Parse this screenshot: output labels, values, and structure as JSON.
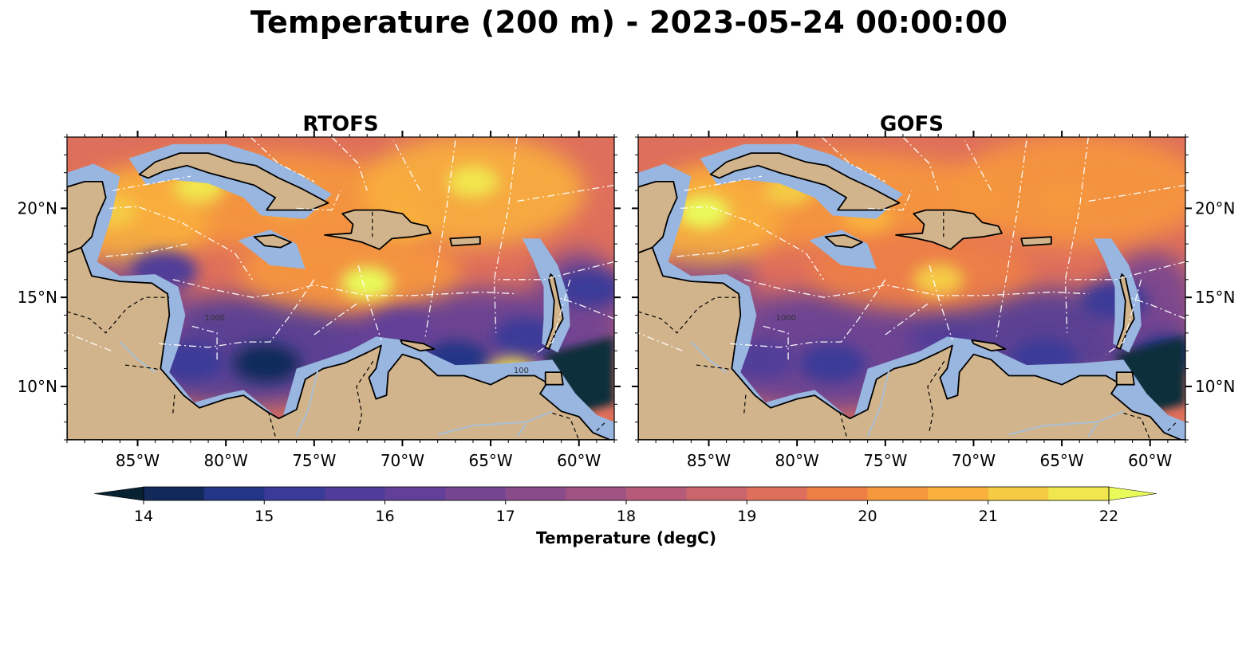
{
  "figure": {
    "title": "Temperature (200 m) - 2023-05-24 00:00:00"
  },
  "colors": {
    "land": "#d2b48c",
    "shelf": "#98b6e0",
    "coast": "#000000",
    "eez_lines": "#ffffff",
    "rivers": "#a9bfd4",
    "colormap": [
      "#0f2e3a",
      "#112a5a",
      "#233586",
      "#3a3a98",
      "#4f3d99",
      "#623f98",
      "#754592",
      "#8a4b8a",
      "#a05283",
      "#b55b79",
      "#c9656c",
      "#de6f5c",
      "#ee8046",
      "#f6983e",
      "#f9b03d",
      "#f5cb44",
      "#f1e64e",
      "#e9fb5a"
    ],
    "under_color": "#072232",
    "over_color": "#e9fb5a"
  },
  "chart_data": [
    {
      "type": "heatmap",
      "title": "RTOFS",
      "x_ticks": [
        "85°W",
        "80°W",
        "75°W",
        "70°W",
        "65°W",
        "60°W"
      ],
      "x_tick_values": [
        -85,
        -80,
        -75,
        -70,
        -65,
        -60
      ],
      "y_ticks": [
        "20°N",
        "15°N",
        "10°N"
      ],
      "y_tick_values": [
        20,
        15,
        10
      ],
      "y_ticks_side": "left",
      "xlim": [
        -89,
        -58
      ],
      "ylim": [
        7,
        24
      ],
      "contour_labels": [
        "1000",
        "100"
      ],
      "warm_spots": [
        {
          "lon": -72,
          "lat": 15.8,
          "temp": 21.8
        },
        {
          "lon": -86.5,
          "lat": 19.8,
          "temp": 21.2
        },
        {
          "lon": -81.5,
          "lat": 21.2,
          "temp": 21.6
        },
        {
          "lon": -66,
          "lat": 21.5,
          "temp": 21.5
        },
        {
          "lon": -76.5,
          "lat": 20.6,
          "temp": 21.2
        },
        {
          "lon": -70,
          "lat": 19.0,
          "temp": 20.8
        },
        {
          "lon": -63.8,
          "lat": 10.7,
          "temp": 21.5
        }
      ],
      "cold_spots": [
        {
          "lon": -77.7,
          "lat": 11.3,
          "temp": 14.6
        },
        {
          "lon": -82,
          "lat": 11.4,
          "temp": 15.2
        },
        {
          "lon": -67,
          "lat": 11.5,
          "temp": 15.0
        },
        {
          "lon": -63,
          "lat": 12.8,
          "temp": 15.6
        },
        {
          "lon": -59.5,
          "lat": 15.5,
          "temp": 15.4
        },
        {
          "lon": -83.5,
          "lat": 16.5,
          "temp": 16.0
        },
        {
          "lon": -70,
          "lat": 13.2,
          "temp": 16.4
        }
      ]
    },
    {
      "type": "heatmap",
      "title": "GOFS",
      "x_ticks": [
        "85°W",
        "80°W",
        "75°W",
        "70°W",
        "65°W",
        "60°W"
      ],
      "x_tick_values": [
        -85,
        -80,
        -75,
        -70,
        -65,
        -60
      ],
      "y_ticks": [
        "20°N",
        "15°N",
        "10°N"
      ],
      "y_tick_values": [
        20,
        15,
        10
      ],
      "y_ticks_side": "right",
      "xlim": [
        -89,
        -58
      ],
      "ylim": [
        7,
        24
      ],
      "contour_labels": [
        "1000"
      ],
      "warm_spots": [
        {
          "lon": -85.3,
          "lat": 19.8,
          "temp": 21.9
        },
        {
          "lon": -80.5,
          "lat": 21.0,
          "temp": 21.0
        },
        {
          "lon": -72.0,
          "lat": 16.0,
          "temp": 21.2
        },
        {
          "lon": -76.0,
          "lat": 19.5,
          "temp": 20.6
        },
        {
          "lon": -65.0,
          "lat": 20.5,
          "temp": 20.3
        }
      ],
      "cold_spots": [
        {
          "lon": -78.0,
          "lat": 11.3,
          "temp": 15.2
        },
        {
          "lon": -66.0,
          "lat": 11.6,
          "temp": 15.2
        },
        {
          "lon": -62.0,
          "lat": 14.8,
          "temp": 15.4
        },
        {
          "lon": -82.0,
          "lat": 11.5,
          "temp": 15.8
        },
        {
          "lon": -59.0,
          "lat": 11.8,
          "temp": 15.0
        }
      ]
    }
  ],
  "colorbar": {
    "label": "Temperature (degC)",
    "min": 14,
    "max": 22,
    "step": 0.5,
    "ticks": [
      "14",
      "15",
      "16",
      "17",
      "18",
      "19",
      "20",
      "21",
      "22"
    ],
    "tick_values": [
      14,
      15,
      16,
      17,
      18,
      19,
      20,
      21,
      22
    ],
    "extend": "both"
  }
}
